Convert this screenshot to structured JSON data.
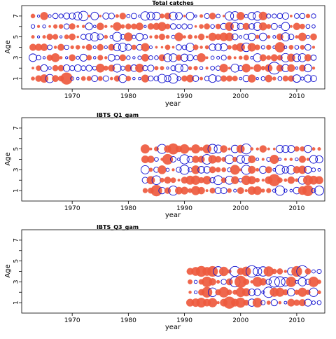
{
  "chart_data": [
    {
      "type": "scatter",
      "title": "Total catches",
      "xlabel": "year",
      "ylabel": "Age",
      "xlim": [
        1961,
        2015
      ],
      "ylim": [
        0,
        8
      ],
      "xticks": [
        1970,
        1980,
        1990,
        2000,
        2010
      ],
      "yticks_labeled": [
        1,
        3,
        5,
        7
      ],
      "yticks": [
        1,
        2,
        3,
        4,
        5,
        6,
        7
      ],
      "grid": false,
      "legend": "none",
      "colors": {
        "positive": "#EE5A3E",
        "negative": "#1010D0"
      },
      "year_range": [
        1963,
        2013
      ],
      "ages": [
        1,
        2,
        3,
        4,
        5,
        6,
        7
      ],
      "max_radius_hint": 8.5,
      "seed": 11,
      "highlights": [
        {
          "x": 1969,
          "y": 1,
          "v": 2.2
        },
        {
          "x": 1972,
          "y": 7,
          "v": -1.4
        },
        {
          "x": 1978,
          "y": 5,
          "v": -1.3
        },
        {
          "x": 1988,
          "y": 1,
          "v": -1.4
        },
        {
          "x": 2006,
          "y": 2,
          "v": -2.2
        },
        {
          "x": 2007,
          "y": 4,
          "v": 1.6
        },
        {
          "x": 1999,
          "y": 7,
          "v": -1.2
        }
      ]
    },
    {
      "type": "scatter",
      "title": "IBTS_Q1_gam",
      "xlabel": "year",
      "ylabel": "Age",
      "xlim": [
        1961,
        2015
      ],
      "ylim": [
        0,
        8
      ],
      "xticks": [
        1970,
        1980,
        1990,
        2000,
        2010
      ],
      "yticks_labeled": [
        1,
        3,
        5,
        7
      ],
      "yticks": [
        1,
        2,
        3,
        4,
        5,
        6,
        7
      ],
      "grid": false,
      "legend": "none",
      "colors": {
        "positive": "#EE5A3E",
        "negative": "#1010D0"
      },
      "year_range": [
        1983,
        2014
      ],
      "ages": [
        1,
        2,
        3,
        4,
        5
      ],
      "max_radius_hint": 8.5,
      "seed": 23,
      "highlights": [
        {
          "x": 1985,
          "y": 1,
          "v": 1.6
        },
        {
          "x": 1987,
          "y": 4,
          "v": 1.4
        },
        {
          "x": 1988,
          "y": 5,
          "v": 1.5
        },
        {
          "x": 2006,
          "y": 2,
          "v": 1.8
        },
        {
          "x": 2012,
          "y": 1,
          "v": 1.5
        },
        {
          "x": 2001,
          "y": 5,
          "v": -1.3
        },
        {
          "x": 1994,
          "y": 4,
          "v": -1.2
        }
      ]
    },
    {
      "type": "scatter",
      "title": "IBTS_Q3_gam",
      "xlabel": "year",
      "ylabel": "Age",
      "xlim": [
        1961,
        2015
      ],
      "ylim": [
        0,
        8
      ],
      "xticks": [
        1970,
        1980,
        1990,
        2000,
        2010
      ],
      "yticks_labeled": [
        1,
        3,
        5,
        7
      ],
      "yticks": [
        1,
        2,
        3,
        4,
        5,
        6,
        7
      ],
      "grid": false,
      "legend": "none",
      "colors": {
        "positive": "#EE5A3E",
        "negative": "#1010D0"
      },
      "year_range": [
        1991,
        2014
      ],
      "ages": [
        1,
        2,
        3,
        4
      ],
      "max_radius_hint": 8.5,
      "seed": 37,
      "highlights": [
        {
          "x": 1998,
          "y": 1,
          "v": 1.5
        },
        {
          "x": 2000,
          "y": 3,
          "v": 1.5
        },
        {
          "x": 2002,
          "y": 4,
          "v": -1.4
        },
        {
          "x": 2011,
          "y": 4,
          "v": -1.4
        },
        {
          "x": 1993,
          "y": 4,
          "v": 1.2
        },
        {
          "x": 2006,
          "y": 3,
          "v": -1.2
        }
      ]
    }
  ]
}
